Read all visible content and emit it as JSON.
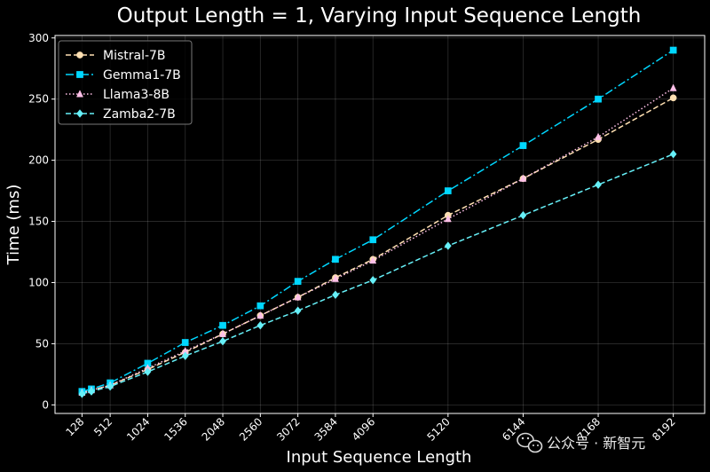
{
  "chart_data": {
    "type": "line",
    "title": "Output Length = 1, Varying Input Sequence Length",
    "xlabel": "Input Sequence Length",
    "ylabel": "Time (ms)",
    "x": [
      128,
      256,
      512,
      1024,
      1536,
      2048,
      2560,
      3072,
      3584,
      4096,
      5120,
      6144,
      7168,
      8192
    ],
    "xticks": [
      "128",
      "512",
      "1024",
      "1536",
      "2048",
      "2560",
      "3072",
      "3584",
      "4096",
      "5120",
      "6144",
      "7168",
      "8192"
    ],
    "xtick_values": [
      128,
      512,
      1024,
      1536,
      2048,
      2560,
      3072,
      3584,
      4096,
      5120,
      6144,
      7168,
      8192
    ],
    "xlim": [
      -240,
      8620
    ],
    "yticks": [
      "0",
      "50",
      "100",
      "150",
      "200",
      "250",
      "300"
    ],
    "ylim": [
      -7,
      302
    ],
    "grid": true,
    "legend_position": "top-left",
    "series": [
      {
        "name": "Mistral-7B",
        "color": "#ffe0b2",
        "marker": "circle",
        "linestyle": "dashed",
        "values": [
          10,
          12,
          16,
          29,
          43,
          58,
          73,
          88,
          104,
          119,
          155,
          185,
          217,
          251
        ]
      },
      {
        "name": "Gemma1-7B",
        "color": "#00d7ff",
        "marker": "square",
        "linestyle": "dashdot",
        "values": [
          11,
          13,
          18,
          34,
          51,
          65,
          81,
          101,
          119,
          135,
          175,
          212,
          250,
          290
        ]
      },
      {
        "name": "Llama3-8B",
        "color": "#ffc0e8",
        "marker": "triangle",
        "linestyle": "dotted",
        "values": [
          10,
          12,
          16,
          30,
          44,
          58,
          73,
          88,
          103,
          118,
          152,
          185,
          219,
          259
        ]
      },
      {
        "name": "Zamba2-7B",
        "color": "#66f0f8",
        "marker": "diamond",
        "linestyle": "dashed",
        "values": [
          9,
          11,
          15,
          27,
          40,
          52,
          65,
          77,
          90,
          102,
          130,
          155,
          180,
          205
        ]
      }
    ]
  },
  "watermark": {
    "text": "公众号 · 新智元",
    "icon": "wechat-icon"
  }
}
